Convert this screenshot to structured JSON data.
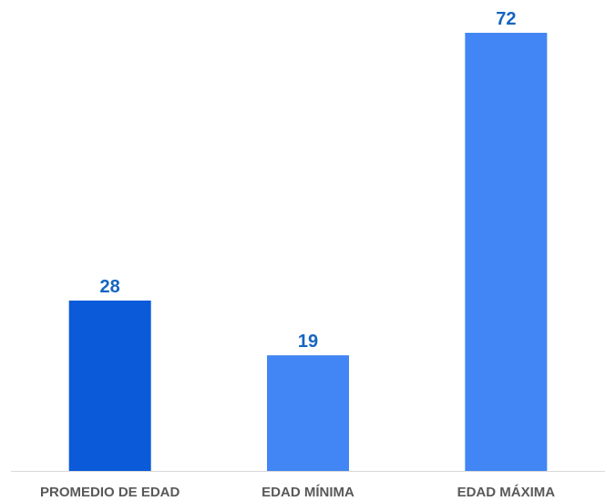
{
  "chart_data": {
    "type": "bar",
    "title": "",
    "xlabel": "",
    "ylabel": "",
    "categories": [
      "PROMEDIO DE EDAD",
      "EDAD MÍNIMA",
      "EDAD MÁXIMA"
    ],
    "values": [
      28,
      19,
      72
    ],
    "ylim": [
      0,
      72
    ],
    "grid": false,
    "data_labels": [
      "28",
      "19",
      "72"
    ],
    "colors": {
      "bars": [
        "#0b5ad9",
        "#4285f4",
        "#4285f4"
      ],
      "data_label": "#1565c0",
      "tick_label": "#595959",
      "axis": "#d9d9d9"
    }
  }
}
